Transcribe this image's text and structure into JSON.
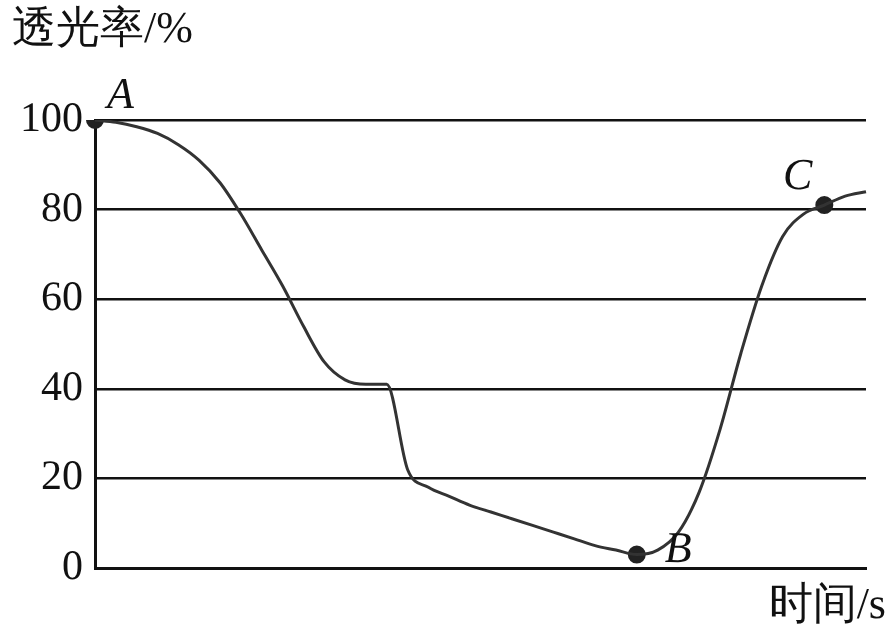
{
  "chart_data": {
    "type": "line",
    "ylabel": "透光率/%",
    "xlabel": "时间/s",
    "categories": [
      null,
      null,
      null,
      null,
      null,
      null,
      null,
      null,
      null,
      null,
      null,
      null,
      null,
      null,
      null,
      null,
      null,
      null,
      null,
      null,
      null,
      null,
      null,
      null,
      null,
      null,
      null,
      null,
      null,
      null,
      null,
      null,
      null,
      null,
      null,
      null,
      null,
      null
    ],
    "series": [
      {
        "color": "#333333",
        "marker": "none",
        "values": [
          100,
          99.5,
          98.5,
          97,
          94.5,
          91,
          86,
          79,
          71,
          63,
          54,
          46,
          42,
          41,
          41,
          22,
          18,
          16,
          14,
          12.5,
          11,
          9.5,
          8,
          6.5,
          5,
          4,
          3,
          4,
          8,
          17,
          31,
          48,
          63,
          74,
          79,
          81,
          83,
          84
        ]
      },
      {
        "type": "scatter",
        "color": "#222222",
        "marker": "circle",
        "values": [
          100,
          null,
          null,
          null,
          null,
          null,
          null,
          null,
          null,
          null,
          null,
          null,
          null,
          null,
          null,
          null,
          null,
          null,
          null,
          null,
          null,
          null,
          null,
          null,
          null,
          null,
          3,
          null,
          null,
          null,
          null,
          null,
          null,
          null,
          null,
          81,
          null,
          null
        ]
      }
    ],
    "annotations": [
      "A",
      "B",
      "C"
    ],
    "ylim": [
      0,
      100
    ],
    "yticks": [
      0,
      20,
      40,
      60,
      80,
      100
    ],
    "grid": "y",
    "legend": false,
    "tick_labels": "y"
  }
}
